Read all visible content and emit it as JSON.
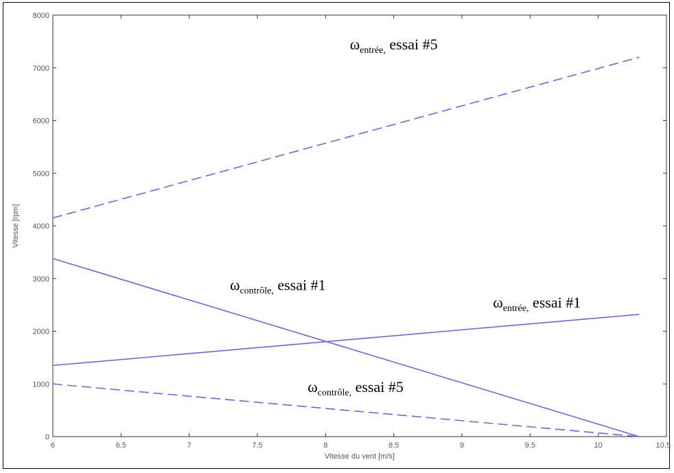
{
  "chart_data": {
    "type": "line",
    "title": "",
    "xlabel": "Vitesse du vent [m/s]",
    "ylabel": "Vitesse [rpm]",
    "xlim": [
      6,
      10.5
    ],
    "ylim": [
      0,
      8000
    ],
    "xticks": [
      "6",
      "6.5",
      "7",
      "7.5",
      "8",
      "8.5",
      "9",
      "9.5",
      "10",
      "10.5"
    ],
    "yticks": [
      "0",
      "1000",
      "2000",
      "3000",
      "4000",
      "5000",
      "6000",
      "7000",
      "8000"
    ],
    "grid": false,
    "line_color": "#6666ee",
    "series": [
      {
        "style": "dashed",
        "x": [
          6,
          10.3
        ],
        "y": [
          4150,
          7200
        ]
      },
      {
        "style": "solid",
        "x": [
          6,
          10.3
        ],
        "y": [
          3380,
          0
        ]
      },
      {
        "style": "solid",
        "x": [
          6,
          10.3
        ],
        "y": [
          1350,
          2320
        ]
      },
      {
        "style": "dashed",
        "x": [
          6,
          10.3
        ],
        "y": [
          1000,
          0
        ]
      }
    ],
    "annotations": [
      {
        "symbol": "ω",
        "sub": "entrée,",
        "text": " essai #5",
        "x": 8.5,
        "y": 7350
      },
      {
        "symbol": "ω",
        "sub": "contrôle,",
        "text": " essai #1",
        "x": 7.65,
        "y": 2780
      },
      {
        "symbol": "ω",
        "sub": "entrée,",
        "text": " essai #1",
        "x": 9.55,
        "y": 2450
      },
      {
        "symbol": "ω",
        "sub": "contrôle,",
        "text": " essai #5",
        "x": 8.22,
        "y": 850
      }
    ]
  }
}
